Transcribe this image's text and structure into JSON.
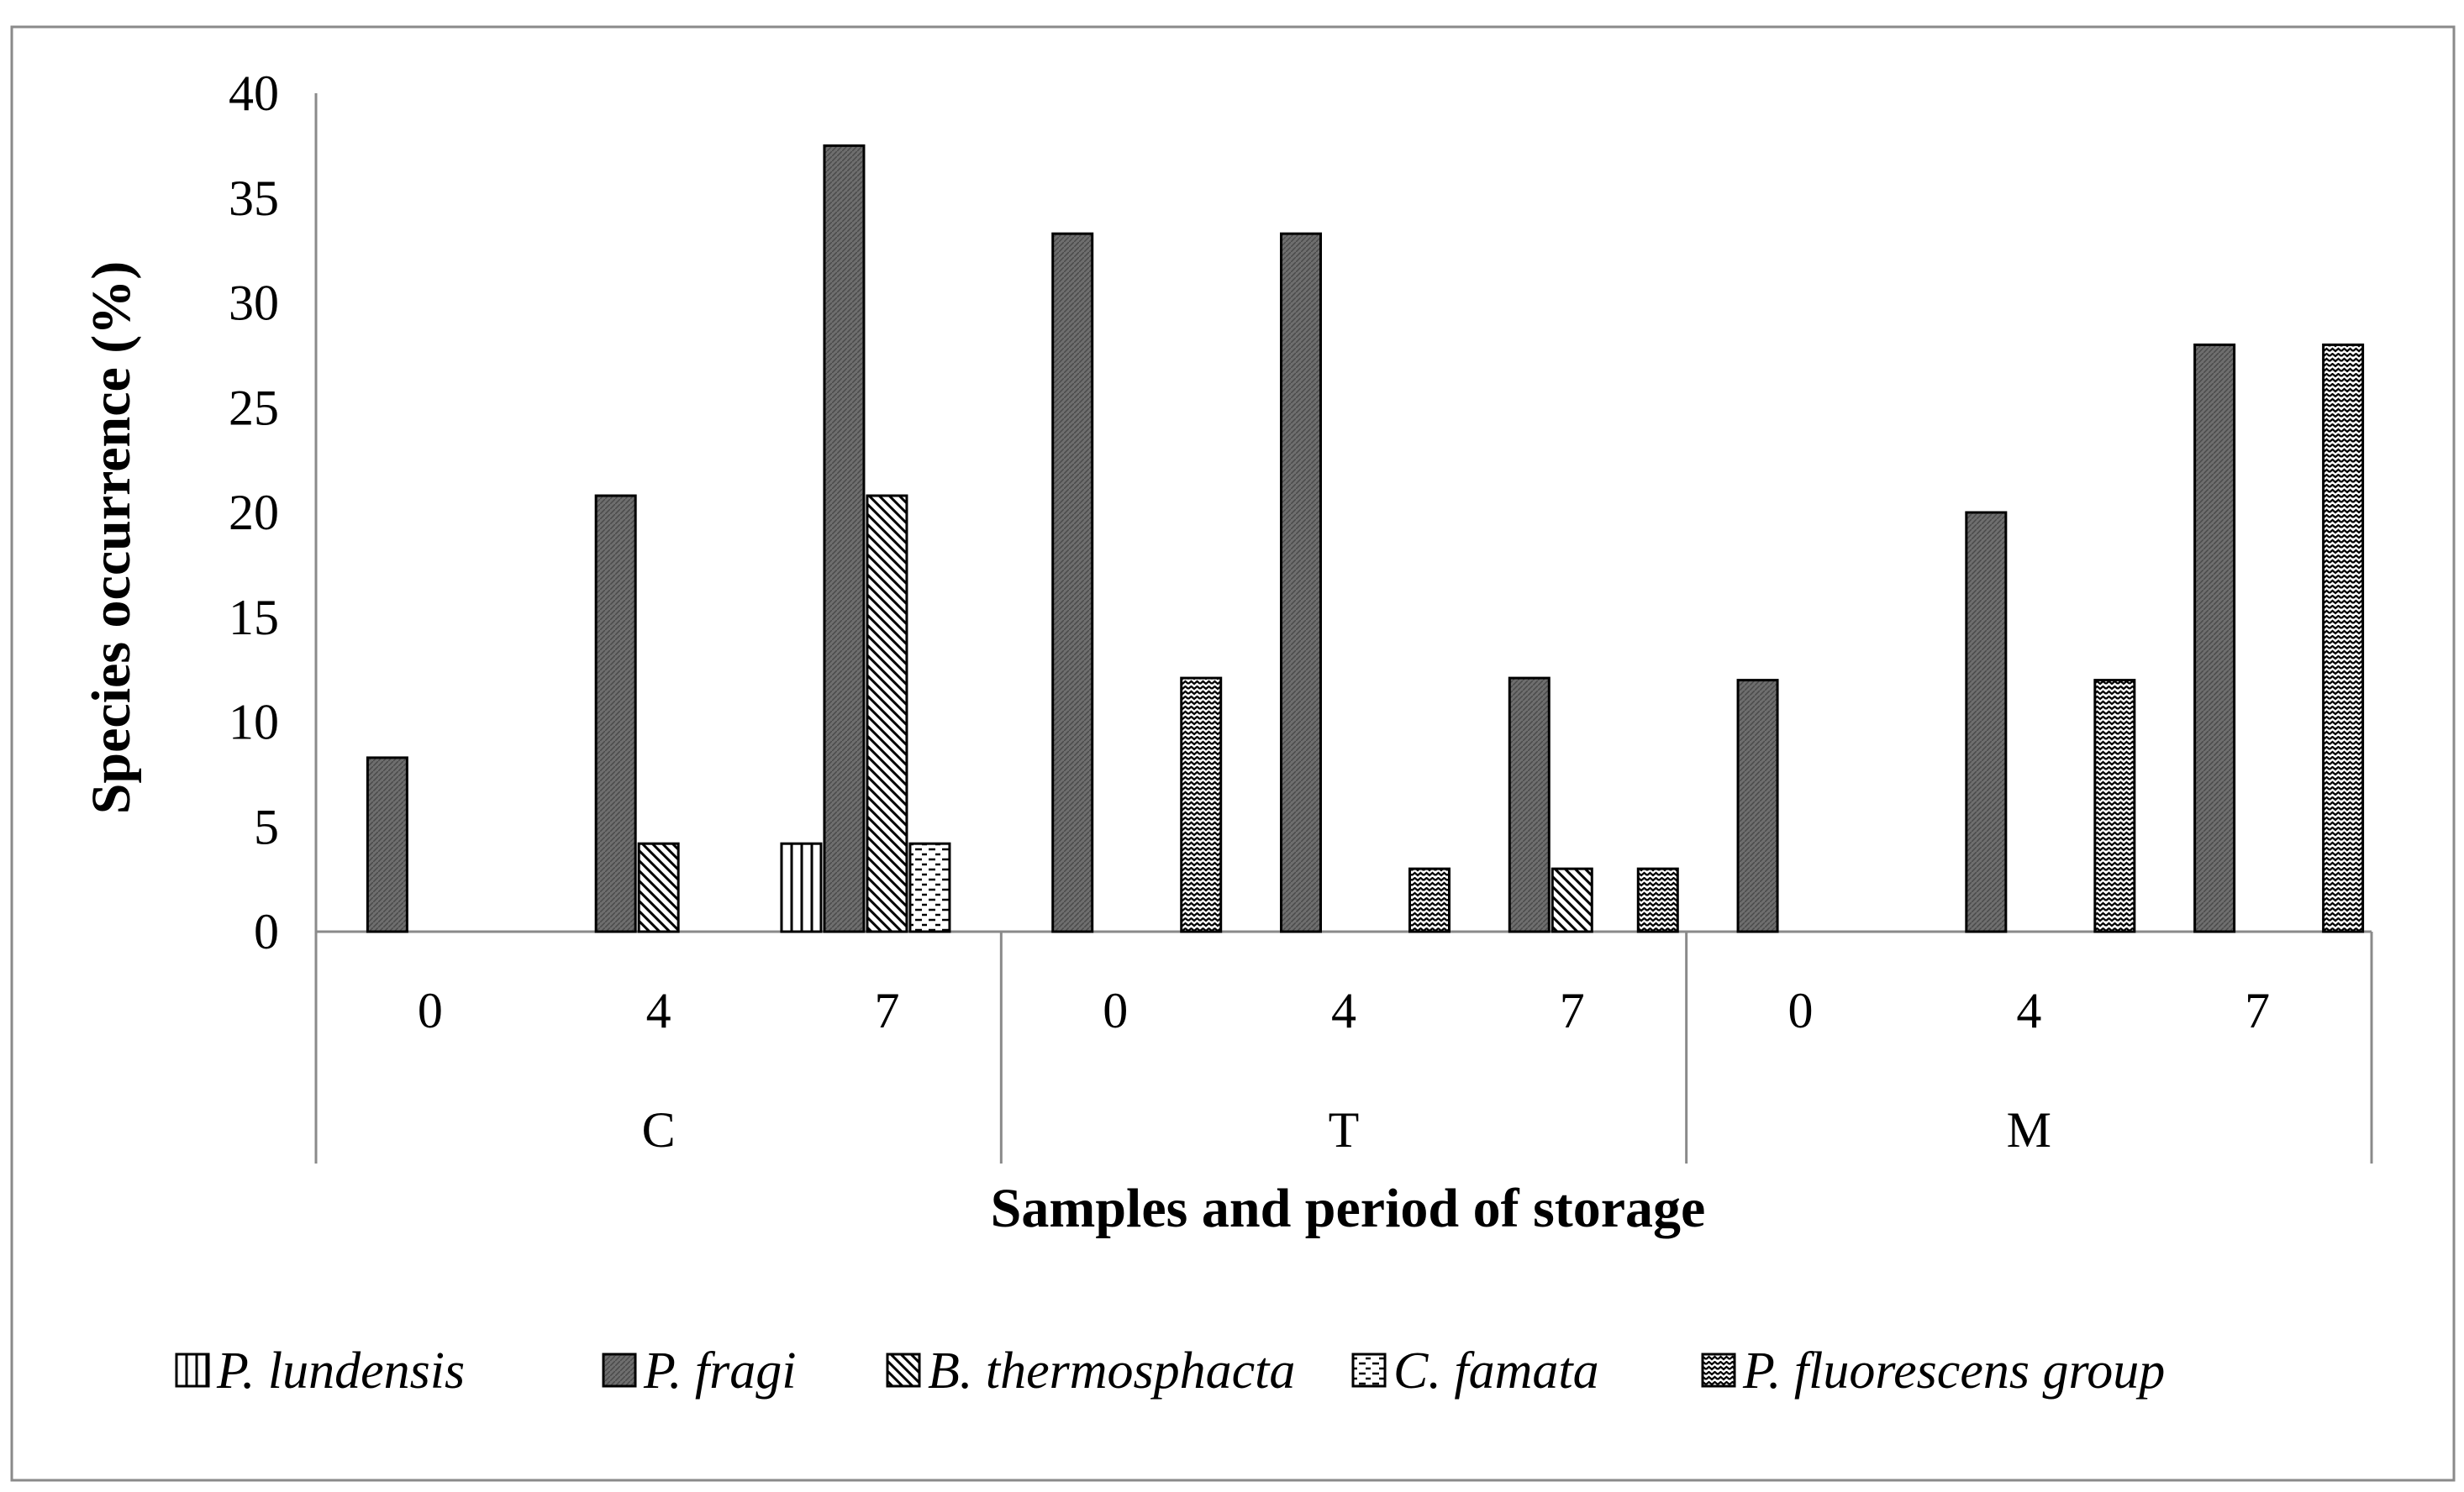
{
  "chart_data": {
    "type": "bar",
    "title": "",
    "xlabel": "Samples and period of storage",
    "ylabel": "Species occurrence (%)",
    "ylim": [
      0,
      40
    ],
    "yticks": [
      "0",
      "5",
      "10",
      "15",
      "20",
      "25",
      "30",
      "35",
      "40"
    ],
    "groups": [
      {
        "label": "C",
        "periods": [
          "0",
          "4",
          "7"
        ]
      },
      {
        "label": "T",
        "periods": [
          "0",
          "4",
          "7"
        ]
      },
      {
        "label": "M",
        "periods": [
          "0",
          "4",
          "7"
        ]
      }
    ],
    "categories": [
      "C 0",
      "C 4",
      "C 7",
      "T 0",
      "T 4",
      "T 7",
      "M 0",
      "M 4",
      "M 7"
    ],
    "series": [
      {
        "name": "P. lundensis",
        "pattern": "vertical",
        "values": [
          0,
          0,
          4.2,
          0,
          0,
          0,
          0,
          0,
          0
        ]
      },
      {
        "name": "P. fragi",
        "pattern": "dense",
        "values": [
          8.3,
          20.8,
          37.5,
          33.3,
          33.3,
          12.1,
          12,
          20,
          28
        ]
      },
      {
        "name": "B. thermosphacta",
        "pattern": "diagonal",
        "values": [
          0,
          4.2,
          20.8,
          0,
          0,
          3,
          0,
          0,
          0
        ]
      },
      {
        "name": "C. famata",
        "pattern": "dashes",
        "values": [
          0,
          0,
          4.2,
          0,
          0,
          0,
          0,
          0,
          0
        ]
      },
      {
        "name": "P. fluorescens group",
        "pattern": "zigzag",
        "values": [
          0,
          0,
          0,
          12.1,
          3,
          3,
          0,
          12,
          28
        ]
      }
    ],
    "grid": false,
    "legend_position": "bottom",
    "colors": {
      "bar_fill": "#ffffff",
      "dense_fill": "#6e6e6e",
      "stroke": "#000000",
      "frame": "#8a8a8a",
      "axis": "#8a8a8a"
    }
  }
}
